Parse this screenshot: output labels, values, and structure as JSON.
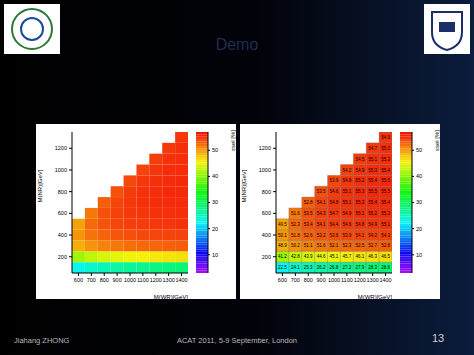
{
  "slide": {
    "title": "Demo",
    "author": "Jiahang ZHONG",
    "event": "ACAT 2011, 5-9 September, London",
    "page": 13
  },
  "chart_data": [
    {
      "type": "heatmap",
      "x_label": "M(WR)[GeV]",
      "y_label": "M(NR)[GeV]",
      "colorbar_label": "εsel [%]",
      "x": [
        600,
        700,
        800,
        900,
        1000,
        1100,
        1200,
        1300,
        1400
      ],
      "y": [
        100,
        200,
        300,
        400,
        500,
        600,
        700,
        800,
        900,
        1000,
        1100,
        1200,
        1300
      ],
      "z": [
        [
          22.5,
          24.1,
          25.3,
          26.2,
          26.8,
          27.2,
          27.9,
          28.3,
          28.6
        ],
        [
          41.2,
          42.8,
          43.9,
          44.6,
          45.1,
          45.7,
          46.1,
          46.3,
          46.5
        ],
        [
          48.9,
          50.2,
          51.1,
          51.6,
          52.1,
          52.3,
          52.5,
          52.7,
          52.8
        ],
        [
          50.1,
          51.8,
          52.6,
          53.2,
          53.6,
          53.9,
          54.1,
          54.2,
          54.3
        ],
        [
          49.5,
          52.3,
          53.4,
          54.1,
          54.4,
          54.6,
          54.8,
          54.9,
          55.1
        ],
        [
          null,
          51.6,
          53.5,
          54.3,
          54.7,
          54.9,
          55.1,
          55.2,
          55.3
        ],
        [
          null,
          null,
          52.8,
          54.1,
          54.8,
          55.1,
          55.3,
          55.4,
          55.4
        ],
        [
          null,
          null,
          null,
          53.5,
          54.6,
          55.1,
          55.3,
          55.5,
          55.5
        ],
        [
          null,
          null,
          null,
          null,
          53.9,
          54.8,
          55.2,
          55.4,
          55.5
        ],
        [
          null,
          null,
          null,
          null,
          null,
          54.2,
          54.9,
          55.3,
          55.4
        ],
        [
          null,
          null,
          null,
          null,
          null,
          null,
          54.5,
          55.1,
          55.3
        ],
        [
          null,
          null,
          null,
          null,
          null,
          null,
          null,
          54.7,
          55.2
        ],
        [
          null,
          null,
          null,
          null,
          null,
          null,
          null,
          null,
          54.9
        ]
      ],
      "xlim": [
        550,
        1450
      ],
      "ylim": [
        50,
        1350
      ],
      "xticks": [
        600,
        700,
        800,
        900,
        1000,
        1100,
        1200,
        1300,
        1400
      ],
      "yticks": [
        200,
        400,
        600,
        800,
        1000,
        1200
      ],
      "colorbar_range": [
        3,
        57
      ],
      "colorbar_ticks": [
        10,
        20,
        30,
        40,
        50
      ],
      "data_labels": false
    },
    {
      "type": "heatmap",
      "x_label": "M(WR)[GeV]",
      "y_label": "M(NR)[GeV]",
      "colorbar_label": "εsel [%]",
      "x": [
        600,
        700,
        800,
        900,
        1000,
        1100,
        1200,
        1300,
        1400
      ],
      "y": [
        100,
        200,
        300,
        400,
        500,
        600,
        700,
        800,
        900,
        1000,
        1100,
        1200,
        1300
      ],
      "z": [
        [
          22.5,
          24.1,
          25.3,
          26.2,
          26.8,
          27.2,
          27.9,
          28.3,
          28.6
        ],
        [
          41.2,
          42.8,
          43.9,
          44.6,
          45.1,
          45.7,
          46.1,
          46.3,
          46.5
        ],
        [
          48.9,
          50.2,
          51.1,
          51.6,
          52.1,
          52.3,
          52.5,
          52.7,
          52.8
        ],
        [
          50.1,
          51.8,
          52.6,
          53.2,
          53.6,
          53.9,
          54.1,
          54.2,
          54.3
        ],
        [
          49.5,
          52.3,
          53.4,
          54.1,
          54.4,
          54.6,
          54.8,
          54.9,
          55.1
        ],
        [
          null,
          51.6,
          53.5,
          54.3,
          54.7,
          54.9,
          55.1,
          55.2,
          55.3
        ],
        [
          null,
          null,
          52.8,
          54.1,
          54.8,
          55.1,
          55.3,
          55.4,
          55.4
        ],
        [
          null,
          null,
          null,
          53.5,
          54.6,
          55.1,
          55.3,
          55.5,
          55.5
        ],
        [
          null,
          null,
          null,
          null,
          53.9,
          54.8,
          55.2,
          55.4,
          55.5
        ],
        [
          null,
          null,
          null,
          null,
          null,
          54.2,
          54.9,
          55.3,
          55.4
        ],
        [
          null,
          null,
          null,
          null,
          null,
          null,
          54.5,
          55.1,
          55.3
        ],
        [
          null,
          null,
          null,
          null,
          null,
          null,
          null,
          54.7,
          55.2
        ],
        [
          null,
          null,
          null,
          null,
          null,
          null,
          null,
          null,
          54.9
        ]
      ],
      "xlim": [
        550,
        1450
      ],
      "ylim": [
        50,
        1350
      ],
      "xticks": [
        600,
        700,
        800,
        900,
        1000,
        1100,
        1200,
        1300,
        1400
      ],
      "yticks": [
        200,
        400,
        600,
        800,
        1000,
        1200
      ],
      "colorbar_range": [
        3,
        57
      ],
      "colorbar_ticks": [
        10,
        20,
        30,
        40,
        50
      ],
      "data_labels": true
    }
  ]
}
